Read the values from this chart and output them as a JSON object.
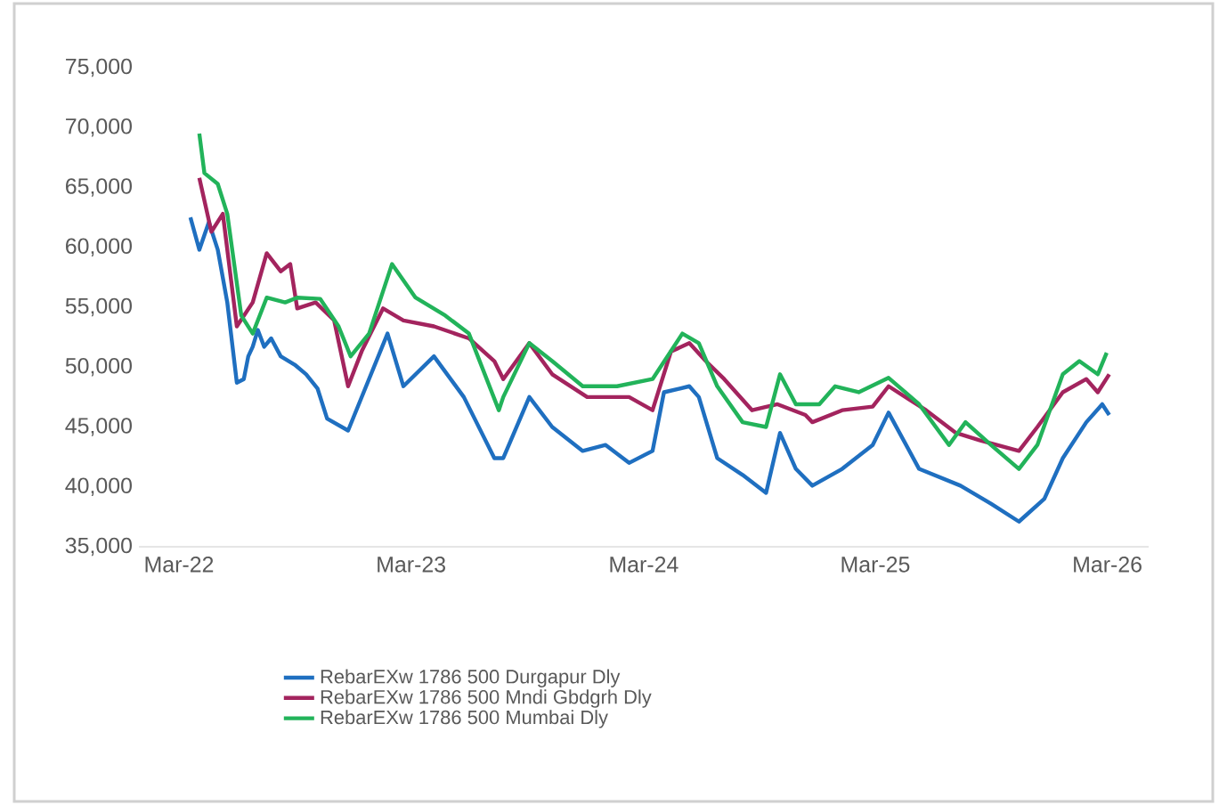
{
  "chart_data": {
    "type": "line",
    "xlim": [
      "2021-12-28",
      "2026-05-05"
    ],
    "xticks": [
      {
        "value": "2022-03-01",
        "label": "Mar-22"
      },
      {
        "value": "2023-03-01",
        "label": "Mar-23"
      },
      {
        "value": "2024-03-01",
        "label": "Mar-24"
      },
      {
        "value": "2025-03-01",
        "label": "Mar-25"
      },
      {
        "value": "2026-03-01",
        "label": "Mar-26"
      }
    ],
    "ylim": [
      35000,
      75000
    ],
    "yticks": [
      {
        "value": 35000,
        "label": "35,000"
      },
      {
        "value": 40000,
        "label": "40,000"
      },
      {
        "value": 45000,
        "label": "45,000"
      },
      {
        "value": 50000,
        "label": "50,000"
      },
      {
        "value": 55000,
        "label": "55,000"
      },
      {
        "value": 60000,
        "label": "60,000"
      },
      {
        "value": 65000,
        "label": "65,000"
      },
      {
        "value": 70000,
        "label": "70,000"
      },
      {
        "value": 75000,
        "label": "75,000"
      }
    ],
    "grid": false,
    "legend": "bottom",
    "marker": "none",
    "line_style": "solid",
    "series": [
      {
        "name": "RebarEXw 1786 500 Durgapur Dly",
        "color": "#1f6fc0",
        "x": [
          "2022-03-19",
          "2022-04-02",
          "2022-04-17",
          "2022-05-01",
          "2022-05-16",
          "2022-05-31",
          "2022-06-11",
          "2022-06-18",
          "2022-06-25",
          "2022-07-03",
          "2022-07-13",
          "2022-07-24",
          "2022-08-08",
          "2022-08-30",
          "2022-09-17",
          "2022-10-05",
          "2022-10-20",
          "2022-11-22",
          "2023-01-23",
          "2023-02-17",
          "2023-04-06",
          "2023-05-23",
          "2023-07-10",
          "2023-07-24",
          "2023-09-03",
          "2023-10-09",
          "2023-11-26",
          "2024-01-01",
          "2024-02-07",
          "2024-03-15",
          "2024-04-02",
          "2024-05-12",
          "2024-05-27",
          "2024-06-25",
          "2024-08-04",
          "2024-09-10",
          "2024-10-02",
          "2024-10-27",
          "2024-11-22",
          "2025-01-08",
          "2025-02-25",
          "2025-03-22",
          "2025-05-09",
          "2025-07-13",
          "2025-08-30",
          "2025-10-13",
          "2025-11-22",
          "2025-12-21",
          "2026-01-27",
          "2026-02-21",
          "2026-03-04"
        ],
        "values": [
          62500,
          59800,
          62100,
          59800,
          55400,
          48700,
          49000,
          50900,
          51700,
          53100,
          51700,
          52400,
          50900,
          50200,
          49400,
          48200,
          45700,
          44700,
          52800,
          48400,
          50900,
          47500,
          42400,
          42400,
          47500,
          45000,
          43000,
          43500,
          42000,
          43000,
          47900,
          48400,
          47500,
          42400,
          41000,
          39500,
          44500,
          41500,
          40100,
          41500,
          43500,
          46200,
          41500,
          40100,
          38600,
          37100,
          39000,
          42400,
          45400,
          46900,
          46000
        ]
      },
      {
        "name": "RebarEXw 1786 500 Mndi Gbdgrh Dly",
        "color": "#a3245e",
        "x": [
          "2022-04-02",
          "2022-04-21",
          "2022-05-09",
          "2022-05-31",
          "2022-06-25",
          "2022-07-17",
          "2022-08-08",
          "2022-08-23",
          "2022-09-03",
          "2022-10-02",
          "2022-10-31",
          "2022-11-22",
          "2022-12-14",
          "2023-01-16",
          "2023-02-17",
          "2023-04-06",
          "2023-05-31",
          "2023-07-10",
          "2023-07-24",
          "2023-09-03",
          "2023-10-09",
          "2023-12-03",
          "2024-02-07",
          "2024-03-15",
          "2024-04-13",
          "2024-05-12",
          "2024-06-07",
          "2024-07-06",
          "2024-08-19",
          "2024-09-28",
          "2024-11-11",
          "2024-11-22",
          "2025-01-08",
          "2025-02-25",
          "2025-03-22",
          "2025-05-20",
          "2025-07-06",
          "2025-08-12",
          "2025-10-13",
          "2025-11-11",
          "2025-12-21",
          "2026-01-27",
          "2026-02-14",
          "2026-03-04"
        ],
        "values": [
          65800,
          61300,
          62800,
          53400,
          55400,
          59500,
          58000,
          58600,
          54900,
          55400,
          53900,
          48400,
          51400,
          54900,
          53900,
          53400,
          52400,
          50500,
          49000,
          52000,
          49400,
          47500,
          47500,
          46400,
          51300,
          52000,
          50500,
          49000,
          46400,
          46900,
          46000,
          45400,
          46400,
          46700,
          48400,
          46400,
          44500,
          43900,
          43000,
          45000,
          47900,
          49000,
          47900,
          49400
        ]
      },
      {
        "name": "RebarEXw 1786 500 Mumbai Dly",
        "color": "#22b35a",
        "x": [
          "2022-04-02",
          "2022-04-10",
          "2022-05-01",
          "2022-05-16",
          "2022-06-07",
          "2022-06-25",
          "2022-07-17",
          "2022-08-15",
          "2022-09-03",
          "2022-10-09",
          "2022-11-07",
          "2022-11-26",
          "2022-12-25",
          "2023-01-30",
          "2023-03-08",
          "2023-04-24",
          "2023-05-31",
          "2023-07-17",
          "2023-07-24",
          "2023-09-03",
          "2023-10-09",
          "2023-11-26",
          "2024-01-19",
          "2024-03-15",
          "2024-05-01",
          "2024-05-27",
          "2024-06-25",
          "2024-08-04",
          "2024-09-10",
          "2024-10-02",
          "2024-10-27",
          "2024-12-03",
          "2024-12-28",
          "2025-02-03",
          "2025-03-22",
          "2025-05-09",
          "2025-06-25",
          "2025-07-21",
          "2025-08-30",
          "2025-10-13",
          "2025-11-11",
          "2025-12-21",
          "2026-01-16",
          "2026-02-14",
          "2026-02-28"
        ],
        "values": [
          69500,
          66200,
          65300,
          62800,
          54300,
          52800,
          55800,
          55400,
          55800,
          55700,
          53400,
          50900,
          52800,
          58600,
          55800,
          54300,
          52800,
          46400,
          47500,
          52000,
          50500,
          48400,
          48400,
          49000,
          52800,
          52000,
          48400,
          45400,
          45000,
          49400,
          46900,
          46900,
          48400,
          47900,
          49100,
          46900,
          43500,
          45400,
          43500,
          41500,
          43500,
          49400,
          50500,
          49400,
          51200
        ]
      }
    ]
  }
}
